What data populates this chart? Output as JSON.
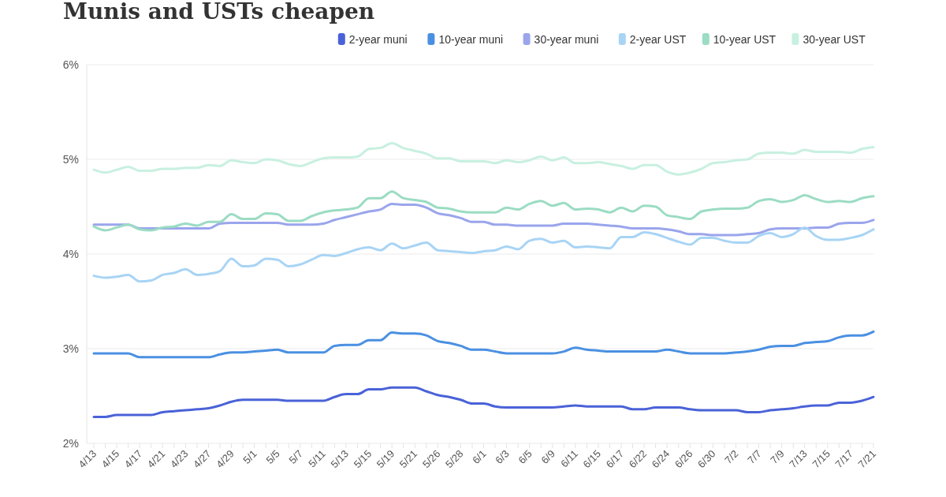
{
  "chart_data": {
    "type": "line",
    "title": "Munis and USTs cheapen",
    "categories": [
      "4/13",
      null,
      "4/15",
      null,
      "4/17",
      null,
      "4/21",
      null,
      "4/23",
      null,
      "4/27",
      null,
      "4/29",
      null,
      "5/1",
      null,
      "5/5",
      null,
      "5/7",
      null,
      "5/11",
      null,
      "5/13",
      null,
      "5/15",
      null,
      "5/19",
      null,
      "5/21",
      null,
      "5/26",
      null,
      "5/28",
      null,
      "6/1",
      null,
      "6/3",
      null,
      "6/5",
      null,
      "6/9",
      null,
      "6/11",
      null,
      "6/15",
      null,
      "6/17",
      null,
      "6/22",
      null,
      "6/24",
      null,
      "6/26",
      null,
      "6/30",
      null,
      "7/2",
      null,
      "7/7",
      null,
      "7/9",
      null,
      "7/13",
      null,
      "7/15",
      null,
      "7/17",
      null,
      "7/21"
    ],
    "series": [
      {
        "name": "2-year muni",
        "color": "#4a62d8",
        "values": [
          2.28,
          2.28,
          2.3,
          2.3,
          2.3,
          2.3,
          2.33,
          2.34,
          2.35,
          2.36,
          2.37,
          2.4,
          2.44,
          2.46,
          2.46,
          2.46,
          2.46,
          2.45,
          2.45,
          2.45,
          2.45,
          2.49,
          2.52,
          2.52,
          2.57,
          2.57,
          2.59,
          2.59,
          2.59,
          2.55,
          2.51,
          2.49,
          2.46,
          2.42,
          2.42,
          2.39,
          2.38,
          2.38,
          2.38,
          2.38,
          2.38,
          2.39,
          2.4,
          2.39,
          2.39,
          2.39,
          2.39,
          2.36,
          2.36,
          2.38,
          2.38,
          2.38,
          2.36,
          2.35,
          2.35,
          2.35,
          2.35,
          2.33,
          2.33,
          2.35,
          2.36,
          2.37,
          2.39,
          2.4,
          2.4,
          2.43,
          2.43,
          2.45,
          2.49
        ]
      },
      {
        "name": "10-year muni",
        "color": "#4a90e2",
        "values": [
          2.95,
          2.95,
          2.95,
          2.95,
          2.91,
          2.91,
          2.91,
          2.91,
          2.91,
          2.91,
          2.91,
          2.94,
          2.96,
          2.96,
          2.97,
          2.98,
          2.99,
          2.96,
          2.96,
          2.96,
          2.96,
          3.03,
          3.04,
          3.04,
          3.09,
          3.09,
          3.17,
          3.16,
          3.16,
          3.14,
          3.08,
          3.06,
          3.03,
          2.99,
          2.99,
          2.97,
          2.95,
          2.95,
          2.95,
          2.95,
          2.95,
          2.97,
          3.01,
          2.99,
          2.98,
          2.97,
          2.97,
          2.97,
          2.97,
          2.97,
          2.99,
          2.97,
          2.95,
          2.95,
          2.95,
          2.95,
          2.96,
          2.97,
          2.99,
          3.02,
          3.03,
          3.03,
          3.06,
          3.07,
          3.08,
          3.12,
          3.14,
          3.14,
          3.18
        ]
      },
      {
        "name": "30-year muni",
        "color": "#9aa5ec",
        "values": [
          4.31,
          4.31,
          4.31,
          4.31,
          4.27,
          4.27,
          4.27,
          4.27,
          4.27,
          4.27,
          4.27,
          4.32,
          4.33,
          4.33,
          4.33,
          4.33,
          4.33,
          4.31,
          4.31,
          4.31,
          4.32,
          4.36,
          4.39,
          4.42,
          4.45,
          4.47,
          4.53,
          4.52,
          4.52,
          4.49,
          4.43,
          4.41,
          4.38,
          4.34,
          4.34,
          4.31,
          4.31,
          4.3,
          4.3,
          4.3,
          4.3,
          4.32,
          4.32,
          4.32,
          4.31,
          4.3,
          4.29,
          4.27,
          4.27,
          4.27,
          4.26,
          4.24,
          4.21,
          4.21,
          4.2,
          4.2,
          4.2,
          4.21,
          4.22,
          4.26,
          4.27,
          4.27,
          4.27,
          4.28,
          4.28,
          4.32,
          4.33,
          4.33,
          4.36
        ]
      },
      {
        "name": "2-year UST",
        "color": "#a8d4f5",
        "values": [
          3.77,
          3.75,
          3.76,
          3.78,
          3.71,
          3.72,
          3.78,
          3.8,
          3.84,
          3.78,
          3.79,
          3.82,
          3.95,
          3.87,
          3.88,
          3.95,
          3.94,
          3.87,
          3.89,
          3.94,
          3.99,
          3.98,
          4.01,
          4.05,
          4.07,
          4.04,
          4.11,
          4.06,
          4.09,
          4.12,
          4.04,
          4.03,
          4.02,
          4.01,
          4.03,
          4.04,
          4.08,
          4.05,
          4.14,
          4.16,
          4.12,
          4.14,
          4.07,
          4.08,
          4.07,
          4.06,
          4.18,
          4.18,
          4.23,
          4.21,
          4.17,
          4.13,
          4.1,
          4.17,
          4.17,
          4.14,
          4.12,
          4.12,
          4.19,
          4.22,
          4.18,
          4.21,
          4.28,
          4.19,
          4.15,
          4.15,
          4.17,
          4.2,
          4.26
        ]
      },
      {
        "name": "10-year UST",
        "color": "#9bdcc3",
        "values": [
          4.29,
          4.25,
          4.28,
          4.31,
          4.26,
          4.25,
          4.28,
          4.29,
          4.32,
          4.3,
          4.34,
          4.34,
          4.42,
          4.37,
          4.37,
          4.43,
          4.42,
          4.35,
          4.35,
          4.4,
          4.44,
          4.46,
          4.47,
          4.49,
          4.59,
          4.59,
          4.66,
          4.59,
          4.57,
          4.55,
          4.49,
          4.48,
          4.45,
          4.44,
          4.44,
          4.44,
          4.49,
          4.47,
          4.53,
          4.56,
          4.51,
          4.54,
          4.47,
          4.48,
          4.47,
          4.44,
          4.49,
          4.45,
          4.51,
          4.5,
          4.41,
          4.39,
          4.37,
          4.45,
          4.47,
          4.48,
          4.48,
          4.49,
          4.56,
          4.58,
          4.55,
          4.57,
          4.62,
          4.58,
          4.55,
          4.56,
          4.55,
          4.59,
          4.61
        ]
      },
      {
        "name": "30-year UST",
        "color": "#c8f0e0",
        "values": [
          4.89,
          4.86,
          4.89,
          4.92,
          4.88,
          4.88,
          4.9,
          4.9,
          4.91,
          4.91,
          4.94,
          4.93,
          4.99,
          4.97,
          4.96,
          5.0,
          4.99,
          4.95,
          4.93,
          4.97,
          5.01,
          5.02,
          5.02,
          5.03,
          5.11,
          5.12,
          5.17,
          5.12,
          5.09,
          5.06,
          5.01,
          5.01,
          4.98,
          4.98,
          4.98,
          4.96,
          4.99,
          4.97,
          4.99,
          5.03,
          4.99,
          5.02,
          4.96,
          4.96,
          4.97,
          4.95,
          4.93,
          4.9,
          4.94,
          4.94,
          4.87,
          4.84,
          4.86,
          4.9,
          4.96,
          4.97,
          4.99,
          5.0,
          5.06,
          5.07,
          5.07,
          5.06,
          5.1,
          5.08,
          5.08,
          5.08,
          5.07,
          5.11,
          5.13
        ]
      }
    ],
    "ylim": [
      2,
      6
    ],
    "yticks": [
      {
        "value": 2,
        "label": "2%"
      },
      {
        "value": 3,
        "label": "3%"
      },
      {
        "value": 4,
        "label": "4%"
      },
      {
        "value": 5,
        "label": "5%"
      },
      {
        "value": 6,
        "label": "6%"
      }
    ],
    "grid": "y",
    "legend": "top right",
    "marker": "none",
    "line_style": "solid"
  }
}
